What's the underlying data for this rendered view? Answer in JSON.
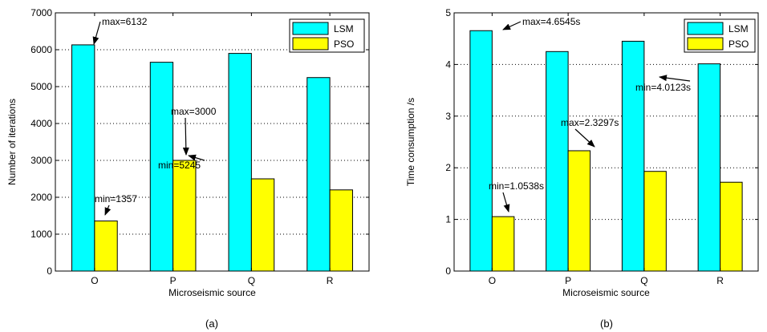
{
  "colors": {
    "lsm": "#00ffff",
    "pso": "#ffff00",
    "grid": "#000000",
    "axis": "#000000"
  },
  "chart_data": [
    {
      "type": "bar",
      "caption": "(a)",
      "categories": [
        "O",
        "P",
        "Q",
        "R"
      ],
      "series": [
        {
          "name": "LSM",
          "color": "#00ffff",
          "values": [
            6132,
            5660,
            5900,
            5245
          ]
        },
        {
          "name": "PSO",
          "color": "#ffff00",
          "values": [
            1357,
            3000,
            2500,
            2200
          ]
        }
      ],
      "xlabel": "Microseismic source",
      "ylabel": "Number of iterations",
      "ylim": [
        0,
        7000
      ],
      "yticks": [
        0,
        1000,
        2000,
        3000,
        4000,
        5000,
        6000,
        7000
      ],
      "ytick_labels": [
        "0",
        "1000",
        "2000",
        "3000",
        "4000",
        "5000",
        "6000",
        "7000"
      ],
      "grid": "dotted-horizontal",
      "legend_position": "top-right",
      "annotations": [
        {
          "text": "max=6132",
          "series": "LSM",
          "category": "O"
        },
        {
          "text": "min=1357",
          "series": "PSO",
          "category": "O"
        },
        {
          "text": "max=3000",
          "series": "PSO",
          "category": "P"
        },
        {
          "text": "min=5245",
          "series": "LSM",
          "category": "R"
        }
      ]
    },
    {
      "type": "bar",
      "caption": "(b)",
      "categories": [
        "O",
        "P",
        "Q",
        "R"
      ],
      "series": [
        {
          "name": "LSM",
          "color": "#00ffff",
          "values": [
            4.6545,
            4.25,
            4.45,
            4.0123
          ]
        },
        {
          "name": "PSO",
          "color": "#ffff00",
          "values": [
            1.0538,
            2.3297,
            1.93,
            1.72
          ]
        }
      ],
      "xlabel": "Microseismic source",
      "ylabel": "Time consumption /s",
      "ylim": [
        0,
        5
      ],
      "yticks": [
        0,
        1,
        2,
        3,
        4,
        5
      ],
      "ytick_labels": [
        "0",
        "1",
        "2",
        "3",
        "4",
        "5"
      ],
      "grid": "dotted-horizontal",
      "legend_position": "top-right",
      "annotations": [
        {
          "text": "max=4.6545s",
          "series": "LSM",
          "category": "O"
        },
        {
          "text": "min=1.0538s",
          "series": "PSO",
          "category": "O"
        },
        {
          "text": "max=2.3297s",
          "series": "PSO",
          "category": "P"
        },
        {
          "text": "min=4.0123s",
          "series": "LSM",
          "category": "R"
        }
      ]
    }
  ]
}
